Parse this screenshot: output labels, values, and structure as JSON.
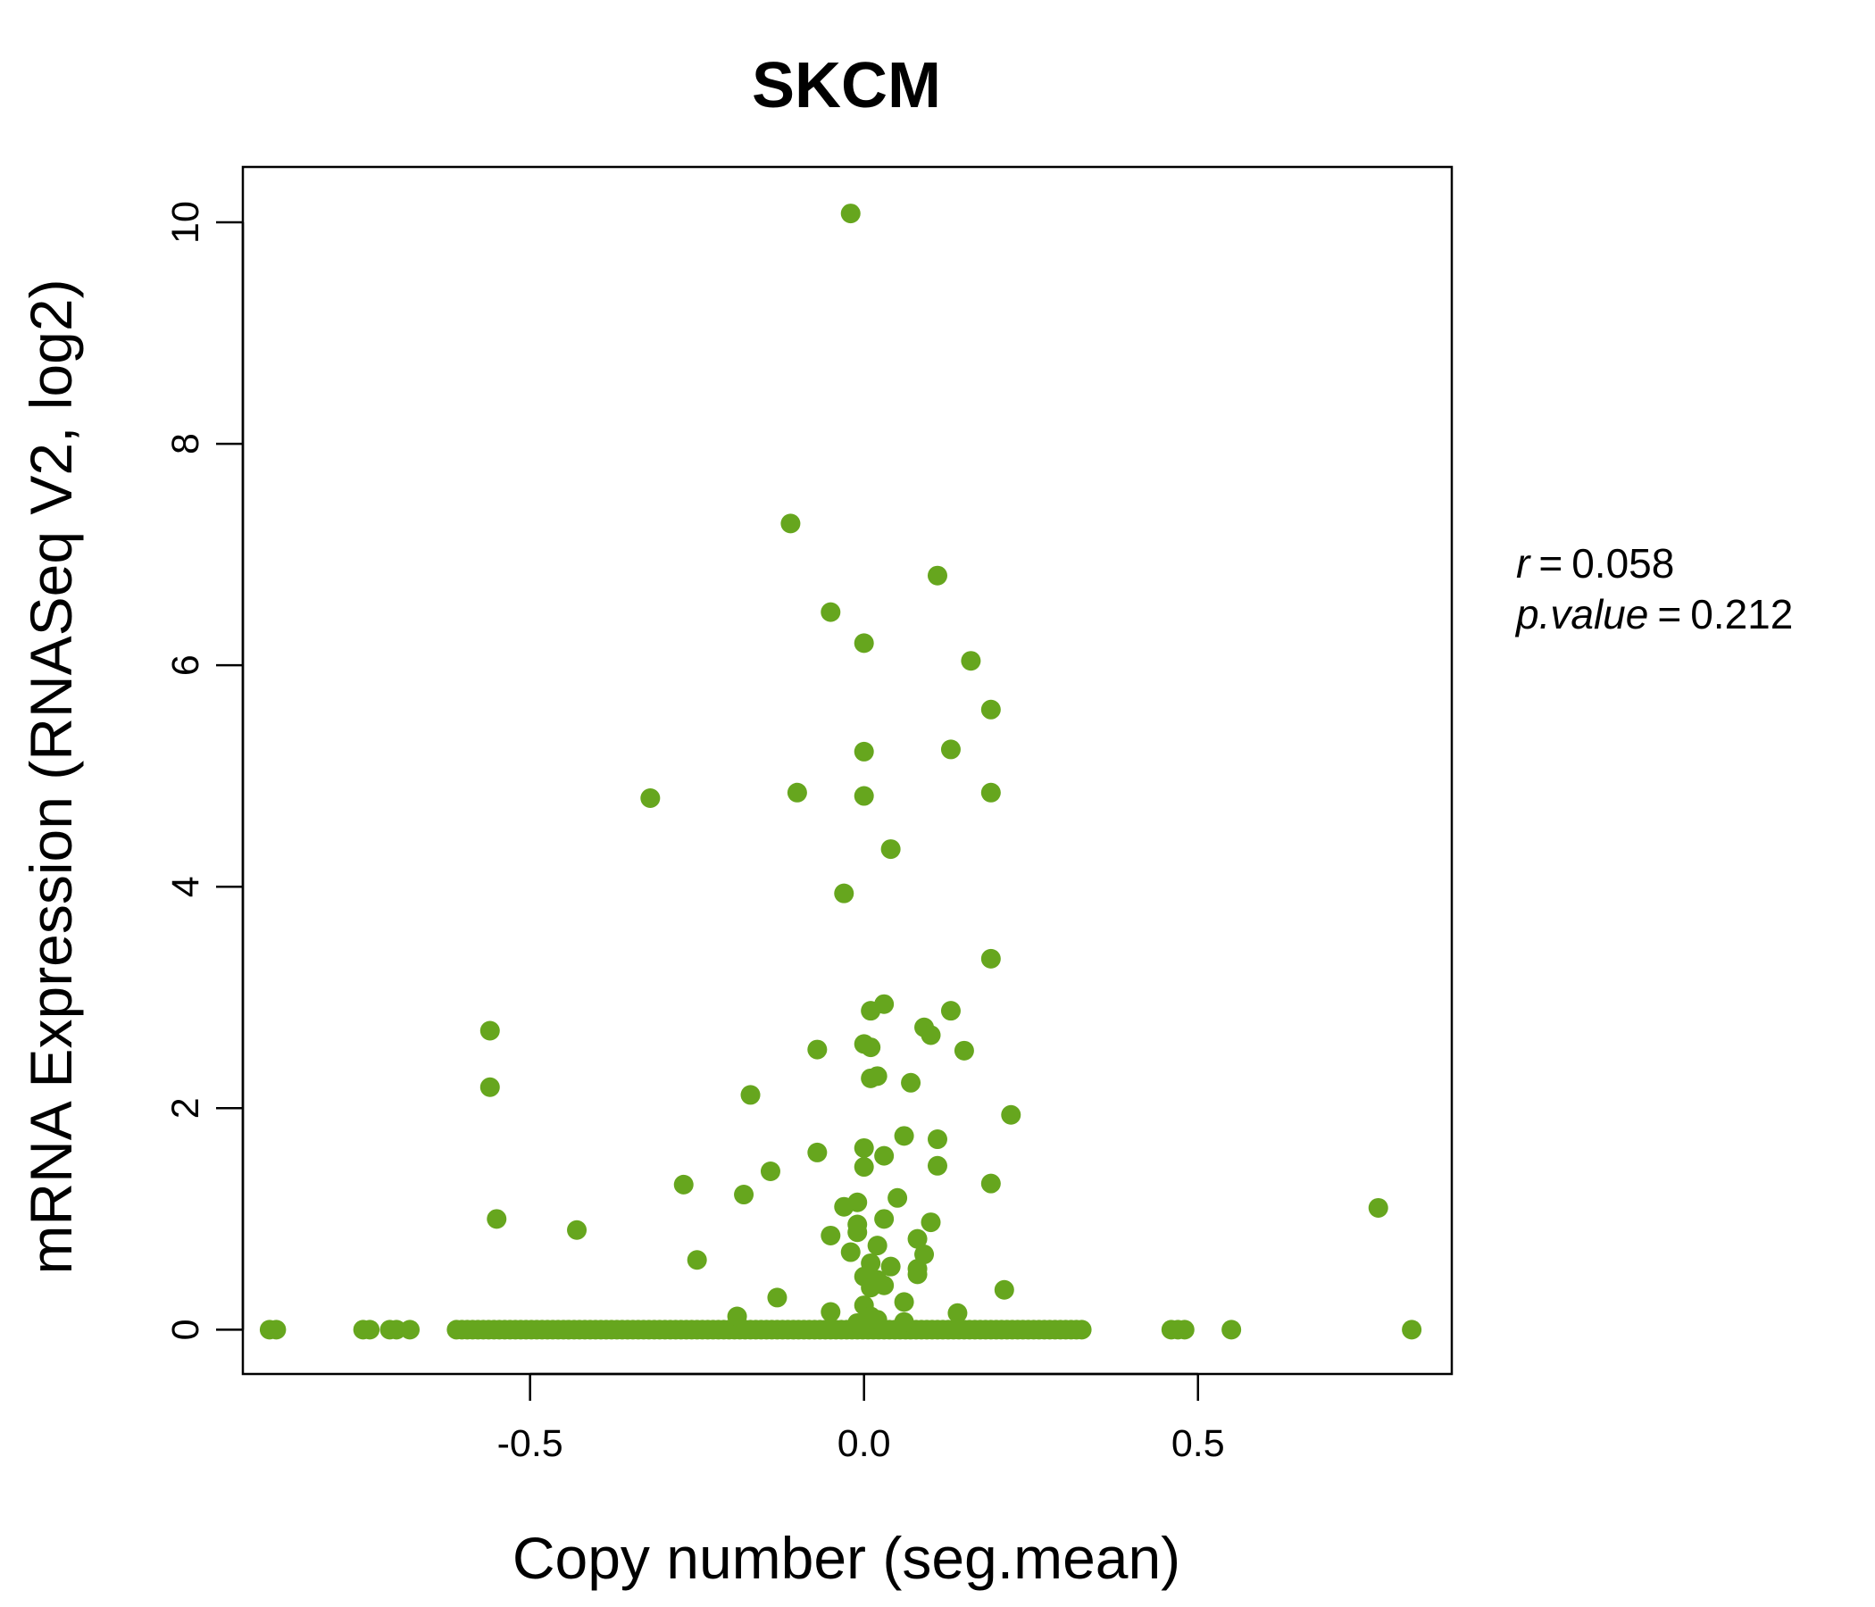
{
  "chart_data": {
    "type": "scatter",
    "title": "SKCM",
    "title_color": "#66a61e",
    "point_color": "#66a61e",
    "xlabel": "Copy number (seg.mean)",
    "ylabel": "mRNA Expression (RNASeq V2, log2)",
    "xlim": [
      -0.93,
      0.88
    ],
    "ylim": [
      -0.4,
      10.5
    ],
    "x_ticks": [
      -0.5,
      0.0,
      0.5
    ],
    "x_tick_labels": [
      "-0.5",
      "0.0",
      "0.5"
    ],
    "y_ticks": [
      0,
      2,
      4,
      6,
      8,
      10
    ],
    "y_tick_labels": [
      "0",
      "2",
      "4",
      "6",
      "8",
      "10"
    ],
    "stats": {
      "r_label": "r",
      "r_value": "0.058",
      "p_label": "p.value",
      "p_value": "0.212"
    },
    "points": [
      {
        "x": -0.02,
        "y": 10.08
      },
      {
        "x": -0.11,
        "y": 7.28
      },
      {
        "x": 0.11,
        "y": 6.81
      },
      {
        "x": -0.05,
        "y": 6.48
      },
      {
        "x": 0.0,
        "y": 6.2
      },
      {
        "x": 0.16,
        "y": 6.04
      },
      {
        "x": 0.19,
        "y": 5.6
      },
      {
        "x": 0.0,
        "y": 5.22
      },
      {
        "x": 0.13,
        "y": 5.24
      },
      {
        "x": -0.32,
        "y": 4.8
      },
      {
        "x": -0.1,
        "y": 4.85
      },
      {
        "x": 0.0,
        "y": 4.82
      },
      {
        "x": 0.19,
        "y": 4.85
      },
      {
        "x": 0.04,
        "y": 4.34
      },
      {
        "x": -0.03,
        "y": 3.94
      },
      {
        "x": 0.19,
        "y": 3.35
      },
      {
        "x": 0.03,
        "y": 2.94
      },
      {
        "x": 0.01,
        "y": 2.88
      },
      {
        "x": 0.13,
        "y": 2.88
      },
      {
        "x": -0.56,
        "y": 2.7
      },
      {
        "x": 0.09,
        "y": 2.73
      },
      {
        "x": 0.1,
        "y": 2.66
      },
      {
        "x": 0.0,
        "y": 2.58
      },
      {
        "x": 0.01,
        "y": 2.55
      },
      {
        "x": -0.07,
        "y": 2.53
      },
      {
        "x": 0.15,
        "y": 2.52
      },
      {
        "x": 0.02,
        "y": 2.29
      },
      {
        "x": 0.01,
        "y": 2.27
      },
      {
        "x": 0.07,
        "y": 2.23
      },
      {
        "x": -0.56,
        "y": 2.19
      },
      {
        "x": -0.17,
        "y": 2.12
      },
      {
        "x": 0.22,
        "y": 1.94
      },
      {
        "x": 0.06,
        "y": 1.75
      },
      {
        "x": 0.11,
        "y": 1.72
      },
      {
        "x": 0.0,
        "y": 1.64
      },
      {
        "x": -0.07,
        "y": 1.6
      },
      {
        "x": 0.03,
        "y": 1.57
      },
      {
        "x": 0.11,
        "y": 1.48
      },
      {
        "x": 0.0,
        "y": 1.47
      },
      {
        "x": -0.14,
        "y": 1.43
      },
      {
        "x": -0.27,
        "y": 1.31
      },
      {
        "x": 0.19,
        "y": 1.32
      },
      {
        "x": -0.18,
        "y": 1.22
      },
      {
        "x": 0.05,
        "y": 1.19
      },
      {
        "x": -0.01,
        "y": 1.15
      },
      {
        "x": -0.03,
        "y": 1.11
      },
      {
        "x": 0.77,
        "y": 1.1
      },
      {
        "x": -0.55,
        "y": 1.0
      },
      {
        "x": 0.03,
        "y": 1.0
      },
      {
        "x": 0.1,
        "y": 0.97
      },
      {
        "x": -0.01,
        "y": 0.95
      },
      {
        "x": -0.43,
        "y": 0.9
      },
      {
        "x": -0.01,
        "y": 0.88
      },
      {
        "x": -0.05,
        "y": 0.85
      },
      {
        "x": 0.08,
        "y": 0.82
      },
      {
        "x": 0.02,
        "y": 0.76
      },
      {
        "x": -0.02,
        "y": 0.7
      },
      {
        "x": 0.09,
        "y": 0.68
      },
      {
        "x": -0.25,
        "y": 0.63
      },
      {
        "x": 0.01,
        "y": 0.6
      },
      {
        "x": 0.04,
        "y": 0.57
      },
      {
        "x": 0.08,
        "y": 0.55
      },
      {
        "x": 0.08,
        "y": 0.5
      },
      {
        "x": 0.0,
        "y": 0.48
      },
      {
        "x": 0.02,
        "y": 0.45
      },
      {
        "x": 0.03,
        "y": 0.4
      },
      {
        "x": 0.01,
        "y": 0.38
      },
      {
        "x": 0.21,
        "y": 0.36
      },
      {
        "x": -0.13,
        "y": 0.29
      },
      {
        "x": 0.06,
        "y": 0.25
      },
      {
        "x": 0.0,
        "y": 0.22
      },
      {
        "x": -0.05,
        "y": 0.16
      },
      {
        "x": 0.14,
        "y": 0.15
      },
      {
        "x": 0.01,
        "y": 0.12
      },
      {
        "x": -0.19,
        "y": 0.12
      },
      {
        "x": 0.02,
        "y": 0.09
      },
      {
        "x": -0.01,
        "y": 0.06
      },
      {
        "x": 0.06,
        "y": 0.07
      },
      {
        "x": -0.89,
        "y": 0
      },
      {
        "x": -0.88,
        "y": 0
      },
      {
        "x": -0.75,
        "y": 0
      },
      {
        "x": -0.74,
        "y": 0
      },
      {
        "x": -0.71,
        "y": 0
      },
      {
        "x": -0.7,
        "y": 0
      },
      {
        "x": -0.68,
        "y": 0
      },
      {
        "x": 0.46,
        "y": 0
      },
      {
        "x": 0.47,
        "y": 0
      },
      {
        "x": 0.48,
        "y": 0
      },
      {
        "x": 0.55,
        "y": 0
      },
      {
        "x": 0.82,
        "y": 0
      }
    ],
    "baseline_segment": {
      "y": 0,
      "x_from": -0.61,
      "x_to": 0.33,
      "step": 0.008
    }
  }
}
